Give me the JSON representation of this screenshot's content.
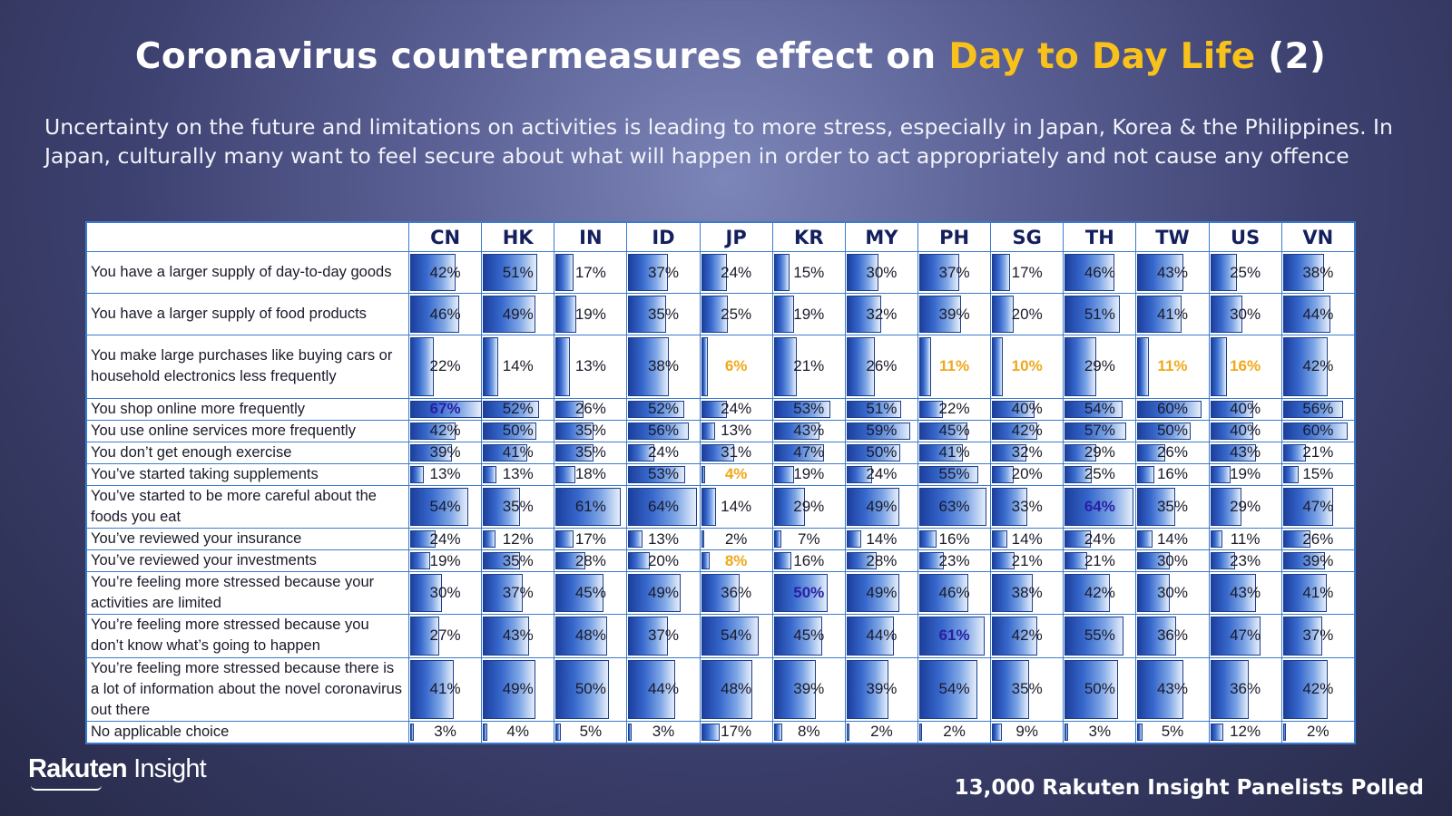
{
  "header": {
    "title_prefix": "Coronavirus countermeasures effect on ",
    "title_highlight": "Day to Day Life",
    "title_suffix": " (2)",
    "subtitle": "Uncertainty on the future and limitations on activities is leading to more stress, especially in Japan, Korea & the Philippines. In Japan, culturally many want to feel secure about what will happen in order to act appropriately and not cause any offence"
  },
  "chart_data": {
    "type": "table",
    "columns": [
      "CN",
      "HK",
      "IN",
      "ID",
      "JP",
      "KR",
      "MY",
      "PH",
      "SG",
      "TH",
      "TW",
      "US",
      "VN"
    ],
    "value_unit": "%",
    "bar_max": 67,
    "rows": [
      {
        "label": "You have a larger supply of day-to-day goods",
        "values": [
          42,
          51,
          17,
          37,
          24,
          15,
          30,
          37,
          17,
          46,
          43,
          25,
          38
        ],
        "max": [],
        "min": []
      },
      {
        "label": "You have a larger supply of food products",
        "values": [
          46,
          49,
          19,
          35,
          25,
          19,
          32,
          39,
          20,
          51,
          41,
          30,
          44
        ],
        "max": [],
        "min": []
      },
      {
        "label": "You make large purchases like buying cars or household electronics less frequently",
        "values": [
          22,
          14,
          13,
          38,
          6,
          21,
          26,
          11,
          10,
          29,
          11,
          16,
          42
        ],
        "max": [],
        "min": [
          "JP",
          "PH",
          "SG",
          "TW",
          "US"
        ]
      },
      {
        "label": "You shop online more frequently",
        "values": [
          67,
          52,
          26,
          52,
          24,
          53,
          51,
          22,
          40,
          54,
          60,
          40,
          56
        ],
        "max": [
          "CN"
        ],
        "min": []
      },
      {
        "label": "You use online services more frequently",
        "values": [
          42,
          50,
          35,
          56,
          13,
          43,
          59,
          45,
          42,
          57,
          50,
          40,
          60
        ],
        "max": [],
        "min": []
      },
      {
        "label": "You don’t get enough exercise",
        "values": [
          39,
          41,
          35,
          24,
          31,
          47,
          50,
          41,
          32,
          29,
          26,
          43,
          21
        ],
        "max": [],
        "min": []
      },
      {
        "label": "You’ve started taking supplements",
        "values": [
          13,
          13,
          18,
          53,
          4,
          19,
          24,
          55,
          20,
          25,
          16,
          19,
          15
        ],
        "max": [],
        "min": [
          "JP"
        ]
      },
      {
        "label": "You’ve started to be more careful about the foods you eat",
        "values": [
          54,
          35,
          61,
          64,
          14,
          29,
          49,
          63,
          33,
          64,
          35,
          29,
          47
        ],
        "max": [
          "TH"
        ],
        "min": []
      },
      {
        "label": "You’ve reviewed your insurance",
        "values": [
          24,
          12,
          17,
          13,
          2,
          7,
          14,
          16,
          14,
          24,
          14,
          11,
          26
        ],
        "max": [],
        "min": []
      },
      {
        "label": "You’ve reviewed your investments",
        "values": [
          19,
          35,
          28,
          20,
          8,
          16,
          28,
          23,
          21,
          21,
          30,
          23,
          39
        ],
        "max": [],
        "min": [
          "JP"
        ]
      },
      {
        "label": "You’re feeling more stressed because your activities are limited",
        "values": [
          30,
          37,
          45,
          49,
          36,
          50,
          49,
          46,
          38,
          42,
          30,
          43,
          41
        ],
        "max": [
          "KR"
        ],
        "min": []
      },
      {
        "label": "You’re feeling more stressed because you don’t know what’s going to happen",
        "values": [
          27,
          43,
          48,
          37,
          54,
          45,
          44,
          61,
          42,
          55,
          36,
          47,
          37
        ],
        "max": [
          "PH"
        ],
        "min": []
      },
      {
        "label": "You’re feeling more stressed because there is a lot of information about the novel coronavirus out there",
        "values": [
          41,
          49,
          50,
          44,
          48,
          39,
          39,
          54,
          35,
          50,
          43,
          36,
          42
        ],
        "max": [],
        "min": []
      },
      {
        "label": "No applicable choice",
        "values": [
          3,
          4,
          5,
          3,
          17,
          8,
          2,
          2,
          9,
          3,
          5,
          12,
          2
        ],
        "max": [],
        "min": []
      }
    ]
  },
  "footer": {
    "logo_bold": "Rakuten",
    "logo_light": " Insight",
    "note": "13,000  Rakuten Insight Panelists Polled"
  }
}
